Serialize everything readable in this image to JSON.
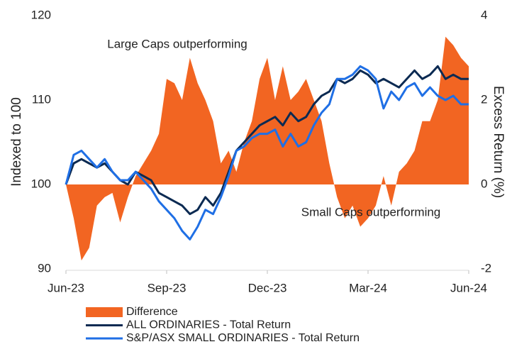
{
  "chart_data": {
    "type": "line",
    "y_label": "Indexed to 100",
    "y2_label": "Excess Return (%)",
    "annotations": [
      "Large Caps outperforming",
      "Small Caps outperforming"
    ],
    "categories": [
      "Jun-23",
      null,
      null,
      null,
      null,
      null,
      null,
      null,
      null,
      null,
      null,
      null,
      null,
      "Sep-23",
      null,
      null,
      null,
      null,
      null,
      null,
      null,
      null,
      null,
      null,
      null,
      null,
      "Dec-23",
      null,
      null,
      null,
      null,
      null,
      null,
      null,
      null,
      null,
      null,
      null,
      null,
      "Mar-24",
      null,
      null,
      null,
      null,
      null,
      null,
      null,
      null,
      null,
      null,
      null,
      null,
      "Jun-24"
    ],
    "ylim": [
      90,
      120
    ],
    "yticks": [
      90,
      100,
      110,
      120
    ],
    "y2lim": [
      -2,
      4
    ],
    "y2ticks": [
      -2,
      0,
      2,
      4
    ],
    "series": [
      {
        "name": "Difference",
        "type": "area",
        "axis": "y2",
        "color": "#f26522",
        "values": [
          0,
          -0.8,
          -1.8,
          -1.5,
          -0.5,
          -0.3,
          -0.2,
          -0.9,
          -0.3,
          0.2,
          0.5,
          0.8,
          1.2,
          2.5,
          2.4,
          2.0,
          3.0,
          2.4,
          2.0,
          1.5,
          0.5,
          0.8,
          0.3,
          1.0,
          1.5,
          2.5,
          3.0,
          2.0,
          2.8,
          2.0,
          2.2,
          2.5,
          2.0,
          1.5,
          0.5,
          -0.3,
          -0.8,
          -0.5,
          -1.0,
          -0.8,
          -0.5,
          0.2,
          -0.5,
          0.3,
          0.5,
          0.8,
          1.5,
          1.5,
          2.0,
          3.5,
          3.3,
          3.0,
          2.8
        ]
      },
      {
        "name": "ALL ORDINARIES - Total Return",
        "type": "line",
        "color": "#0b2a52",
        "values": [
          100,
          102.5,
          103,
          102.5,
          102,
          102.5,
          101.5,
          100.5,
          100,
          101.5,
          101,
          100.5,
          99,
          98.5,
          98,
          97.5,
          96.5,
          97,
          98.5,
          97.5,
          99,
          101.5,
          104,
          105,
          106,
          107,
          107.5,
          108,
          107,
          108.5,
          107.5,
          108,
          109.5,
          110.5,
          111,
          112.5,
          112,
          112.5,
          113.5,
          113,
          112,
          112.5,
          112,
          111.5,
          112.5,
          113.5,
          112.5,
          113,
          114,
          112.5,
          113,
          112.5,
          112.5
        ]
      },
      {
        "name": "S&P/ASX SMALL ORDINARIES - Total Return",
        "type": "line",
        "color": "#1f6fe5",
        "values": [
          100,
          103.5,
          104,
          103,
          102,
          103,
          101.5,
          100.5,
          100.5,
          101.5,
          100.5,
          99.5,
          98,
          97,
          96,
          94.5,
          93.5,
          95,
          97,
          96.5,
          98.5,
          101,
          104,
          104.5,
          105.5,
          106,
          106,
          106.5,
          104.5,
          106,
          104.5,
          105,
          107,
          108.5,
          109.5,
          112.5,
          112.5,
          113,
          114,
          113.5,
          112.5,
          109,
          111,
          110,
          111.5,
          112,
          110.5,
          111.5,
          110.5,
          110,
          110.5,
          109.5,
          109.5
        ]
      }
    ]
  }
}
